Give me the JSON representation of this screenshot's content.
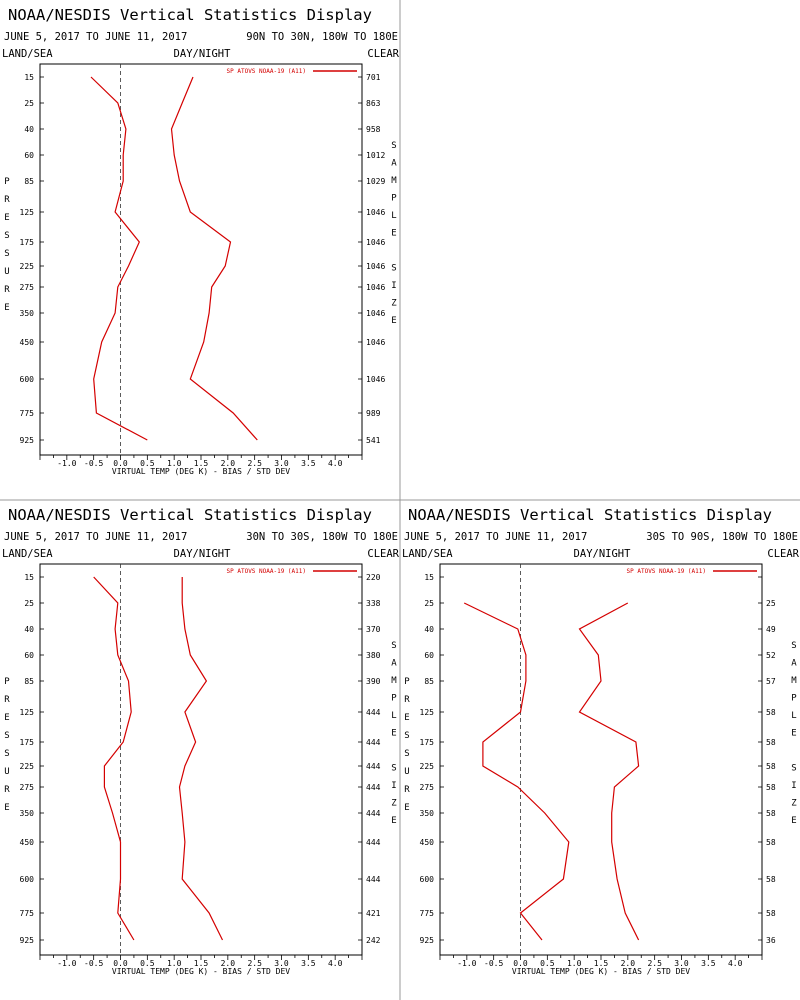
{
  "chart_data": [
    {
      "type": "line",
      "title": "NOAA/NESDIS Vertical Statistics Display",
      "date_range": "JUNE 5, 2017 TO JUNE 11, 2017",
      "region": "90N TO 30N, 180W TO 180E",
      "left_header": "LAND/SEA",
      "center_header": "DAY/NIGHT",
      "right_header": "CLEAR",
      "left_axis_label": "PRESSURE",
      "right_axis_label": "SAMPLE SIZE",
      "xlabel": "VIRTUAL TEMP (DEG K) - BIAS / STD DEV",
      "xlim": [
        -1.5,
        4.5
      ],
      "xticks": [
        "-1.0",
        "-0.5",
        "0.0",
        "0.5",
        "1.0",
        "1.5",
        "2.0",
        "2.5",
        "3.0",
        "3.5",
        "4.0"
      ],
      "pressure_levels": [
        "15",
        "25",
        "40",
        "60",
        "85",
        "125",
        "175",
        "225",
        "275",
        "350",
        "450",
        "600",
        "775",
        "925"
      ],
      "sample_size": [
        "701",
        "863",
        "958",
        "1012",
        "1029",
        "1046",
        "1046",
        "1046",
        "1046",
        "1046",
        "1046",
        "1046",
        "989",
        "541"
      ],
      "legend": "SP ATOVS NOAA-19 (A11)",
      "color": "#d40000",
      "bias": [
        -0.55,
        -0.05,
        0.1,
        0.05,
        0.05,
        -0.1,
        0.35,
        0.15,
        -0.05,
        -0.1,
        -0.35,
        -0.5,
        -0.45,
        0.5
      ],
      "std_dev": [
        1.35,
        1.15,
        0.95,
        1.0,
        1.1,
        1.3,
        2.05,
        1.95,
        1.7,
        1.65,
        1.55,
        1.3,
        2.1,
        2.55
      ]
    },
    {
      "type": "line",
      "title": "NOAA/NESDIS Vertical Statistics Display",
      "date_range": "JUNE 5, 2017 TO JUNE 11, 2017",
      "region": "30N TO 30S, 180W TO 180E",
      "left_header": "LAND/SEA",
      "center_header": "DAY/NIGHT",
      "right_header": "CLEAR",
      "left_axis_label": "PRESSURE",
      "right_axis_label": "SAMPLE SIZE",
      "xlabel": "VIRTUAL TEMP (DEG K) - BIAS / STD DEV",
      "xlim": [
        -1.5,
        4.5
      ],
      "xticks": [
        "-1.0",
        "-0.5",
        "0.0",
        "0.5",
        "1.0",
        "1.5",
        "2.0",
        "2.5",
        "3.0",
        "3.5",
        "4.0"
      ],
      "pressure_levels": [
        "15",
        "25",
        "40",
        "60",
        "85",
        "125",
        "175",
        "225",
        "275",
        "350",
        "450",
        "600",
        "775",
        "925"
      ],
      "sample_size": [
        "220",
        "338",
        "370",
        "380",
        "390",
        "444",
        "444",
        "444",
        "444",
        "444",
        "444",
        "444",
        "421",
        "242"
      ],
      "legend": "SP ATOVS NOAA-19 (A11)",
      "color": "#d40000",
      "bias": [
        -0.5,
        -0.05,
        -0.1,
        -0.05,
        0.15,
        0.2,
        0.05,
        -0.3,
        -0.3,
        -0.15,
        0.0,
        0.0,
        -0.05,
        0.25
      ],
      "std_dev": [
        1.15,
        1.15,
        1.2,
        1.3,
        1.6,
        1.2,
        1.4,
        1.2,
        1.1,
        1.15,
        1.2,
        1.15,
        1.65,
        1.9
      ]
    },
    {
      "type": "line",
      "title": "NOAA/NESDIS Vertical Statistics Display",
      "date_range": "JUNE 5, 2017 TO JUNE 11, 2017",
      "region": "30S TO 90S, 180W TO 180E",
      "left_header": "LAND/SEA",
      "center_header": "DAY/NIGHT",
      "right_header": "CLEAR",
      "left_axis_label": "PRESSURE",
      "right_axis_label": "SAMPLE SIZE",
      "xlabel": "VIRTUAL TEMP (DEG K) - BIAS / STD DEV",
      "xlim": [
        -1.5,
        4.5
      ],
      "xticks": [
        "-1.0",
        "-0.5",
        "0.0",
        "0.5",
        "1.0",
        "1.5",
        "2.0",
        "2.5",
        "3.0",
        "3.5",
        "4.0"
      ],
      "pressure_levels": [
        "15",
        "25",
        "40",
        "60",
        "85",
        "125",
        "175",
        "225",
        "275",
        "350",
        "450",
        "600",
        "775",
        "925"
      ],
      "sample_size": [
        "",
        "25",
        "49",
        "52",
        "57",
        "58",
        "58",
        "58",
        "58",
        "58",
        "58",
        "58",
        "58",
        "36"
      ],
      "legend": "SP ATOVS NOAA-19 (A11)",
      "color": "#d40000",
      "bias": [
        null,
        -1.05,
        -0.05,
        0.1,
        0.1,
        0.0,
        -0.7,
        -0.7,
        -0.05,
        0.45,
        0.9,
        0.8,
        0.0,
        0.4
      ],
      "std_dev": [
        null,
        2.0,
        1.1,
        1.45,
        1.5,
        1.1,
        2.15,
        2.2,
        1.75,
        1.7,
        1.7,
        1.8,
        1.95,
        2.2
      ]
    }
  ]
}
